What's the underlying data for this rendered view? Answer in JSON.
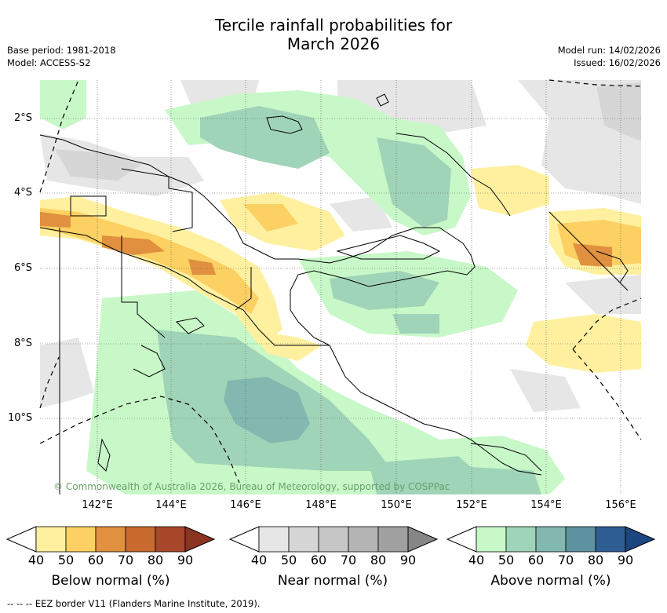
{
  "title_line1": "Tercile rainfall probabilities for",
  "title_line2": "March 2026",
  "meta_left": {
    "base_period": "Base period: 1981-2018",
    "model": "Model: ACCESS-S2"
  },
  "meta_right": {
    "model_run": "Model run: 14/02/2026",
    "issued": "Issued: 16/02/2026"
  },
  "lat_labels": [
    "2°S",
    "4°S",
    "6°S",
    "8°S",
    "10°S"
  ],
  "lon_labels": [
    "142°E",
    "144°E",
    "146°E",
    "148°E",
    "150°E",
    "152°E",
    "154°E",
    "156°E"
  ],
  "credit": "© Commonwealth of Australia 2026, Bureau of Meteorology, supported by COSPPac",
  "colorbars": [
    {
      "title": "Below normal (%)",
      "ticks": [
        "40",
        "50",
        "60",
        "70",
        "80",
        "90"
      ],
      "colors": [
        "#fff0a0",
        "#fcd062",
        "#e0903e",
        "#c86a2e",
        "#a8472a",
        "#8c3322"
      ]
    },
    {
      "title": "Near normal (%)",
      "ticks": [
        "40",
        "50",
        "60",
        "70",
        "80",
        "90"
      ],
      "colors": [
        "#e6e6e6",
        "#d6d6d6",
        "#c6c6c6",
        "#b4b4b4",
        "#a0a0a0",
        "#868686"
      ]
    },
    {
      "title": "Above normal (%)",
      "ticks": [
        "40",
        "50",
        "60",
        "70",
        "80",
        "90"
      ],
      "colors": [
        "#c8f8c8",
        "#a0d4b8",
        "#82b8b0",
        "#5e92a0",
        "#2e5e94",
        "#1c4680"
      ]
    }
  ],
  "footer": "--  --  -- EEZ border V11 (Flanders Marine Institute, 2019)."
}
